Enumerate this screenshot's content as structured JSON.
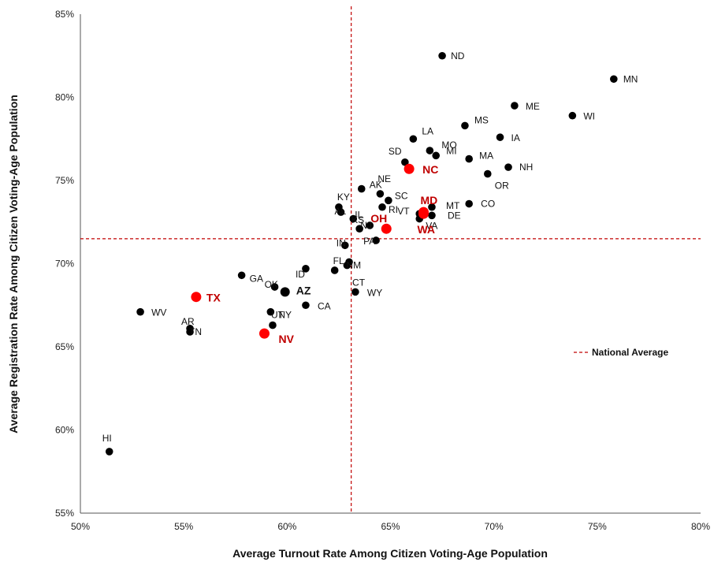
{
  "chart_data": {
    "type": "scatter",
    "xlabel": "Average Turnout Rate Among Citizen Voting-Age Population",
    "ylabel": "Average Registration Rate Among Citizen Voting-Age Population",
    "xlim": [
      0.5,
      0.8
    ],
    "ylim": [
      0.55,
      0.85
    ],
    "x_ticks": [
      "50%",
      "55%",
      "60%",
      "65%",
      "70%",
      "75%",
      "80%"
    ],
    "y_ticks": [
      "55%",
      "60%",
      "65%",
      "70%",
      "75%",
      "80%",
      "85%"
    ],
    "reference_lines": {
      "x": 0.631,
      "y": 0.715,
      "label": "National Average",
      "color": "#c00000",
      "style": "dashed"
    },
    "legend_position": "right",
    "colors": {
      "point": "#000000",
      "highlight": "#ff0000",
      "highlight_label": "#c00000"
    },
    "points": [
      {
        "label": "ND",
        "x": 0.675,
        "y": 0.825
      },
      {
        "label": "MN",
        "x": 0.758,
        "y": 0.811
      },
      {
        "label": "ME",
        "x": 0.71,
        "y": 0.795
      },
      {
        "label": "WI",
        "x": 0.738,
        "y": 0.789
      },
      {
        "label": "MS",
        "x": 0.686,
        "y": 0.783
      },
      {
        "label": "IA",
        "x": 0.703,
        "y": 0.776
      },
      {
        "label": "LA",
        "x": 0.661,
        "y": 0.775
      },
      {
        "label": "MO",
        "x": 0.669,
        "y": 0.768
      },
      {
        "label": "MI",
        "x": 0.672,
        "y": 0.765
      },
      {
        "label": "SD",
        "x": 0.657,
        "y": 0.761
      },
      {
        "label": "MA",
        "x": 0.688,
        "y": 0.763
      },
      {
        "label": "NH",
        "x": 0.707,
        "y": 0.758
      },
      {
        "label": "NC",
        "x": 0.659,
        "y": 0.757,
        "highlight": true
      },
      {
        "label": "OR",
        "x": 0.697,
        "y": 0.754
      },
      {
        "label": "NE",
        "x": 0.645,
        "y": 0.742
      },
      {
        "label": "AK",
        "x": 0.636,
        "y": 0.745
      },
      {
        "label": "SC",
        "x": 0.649,
        "y": 0.738
      },
      {
        "label": "RI",
        "x": 0.646,
        "y": 0.734
      },
      {
        "label": "MD",
        "x": 0.666,
        "y": 0.731,
        "highlight": true
      },
      {
        "label": "VT",
        "x": 0.664,
        "y": 0.73
      },
      {
        "label": "CO",
        "x": 0.688,
        "y": 0.736
      },
      {
        "label": "MT",
        "x": 0.67,
        "y": 0.734
      },
      {
        "label": "DE",
        "x": 0.67,
        "y": 0.729
      },
      {
        "label": "KY",
        "x": 0.625,
        "y": 0.734
      },
      {
        "label": "AL",
        "x": 0.626,
        "y": 0.731
      },
      {
        "label": "IL",
        "x": 0.632,
        "y": 0.727
      },
      {
        "label": "NJ",
        "x": 0.64,
        "y": 0.723
      },
      {
        "label": "OH",
        "x": 0.648,
        "y": 0.721,
        "highlight": true
      },
      {
        "label": "WA",
        "x": 0.666,
        "y": 0.73,
        "highlight": true
      },
      {
        "label": "VA",
        "x": 0.664,
        "y": 0.727
      },
      {
        "label": "KS",
        "x": 0.635,
        "y": 0.721
      },
      {
        "label": "PA",
        "x": 0.643,
        "y": 0.714
      },
      {
        "label": "IN",
        "x": 0.628,
        "y": 0.711
      },
      {
        "label": "CT",
        "x": 0.63,
        "y": 0.701
      },
      {
        "label": "NM",
        "x": 0.629,
        "y": 0.699
      },
      {
        "label": "FL",
        "x": 0.623,
        "y": 0.696
      },
      {
        "label": "ID",
        "x": 0.609,
        "y": 0.697
      },
      {
        "label": "GA",
        "x": 0.578,
        "y": 0.693
      },
      {
        "label": "OK",
        "x": 0.594,
        "y": 0.686
      },
      {
        "label": "AZ",
        "x": 0.599,
        "y": 0.683,
        "big": true
      },
      {
        "label": "WY",
        "x": 0.633,
        "y": 0.683
      },
      {
        "label": "CA",
        "x": 0.609,
        "y": 0.675
      },
      {
        "label": "TX",
        "x": 0.556,
        "y": 0.68,
        "highlight": true
      },
      {
        "label": "WV",
        "x": 0.529,
        "y": 0.671
      },
      {
        "label": "NY",
        "x": 0.592,
        "y": 0.671
      },
      {
        "label": "UT",
        "x": 0.593,
        "y": 0.663
      },
      {
        "label": "AR",
        "x": 0.553,
        "y": 0.661
      },
      {
        "label": "TN",
        "x": 0.553,
        "y": 0.659
      },
      {
        "label": "NV",
        "x": 0.589,
        "y": 0.658,
        "highlight": true
      },
      {
        "label": "HI",
        "x": 0.514,
        "y": 0.587
      }
    ]
  }
}
